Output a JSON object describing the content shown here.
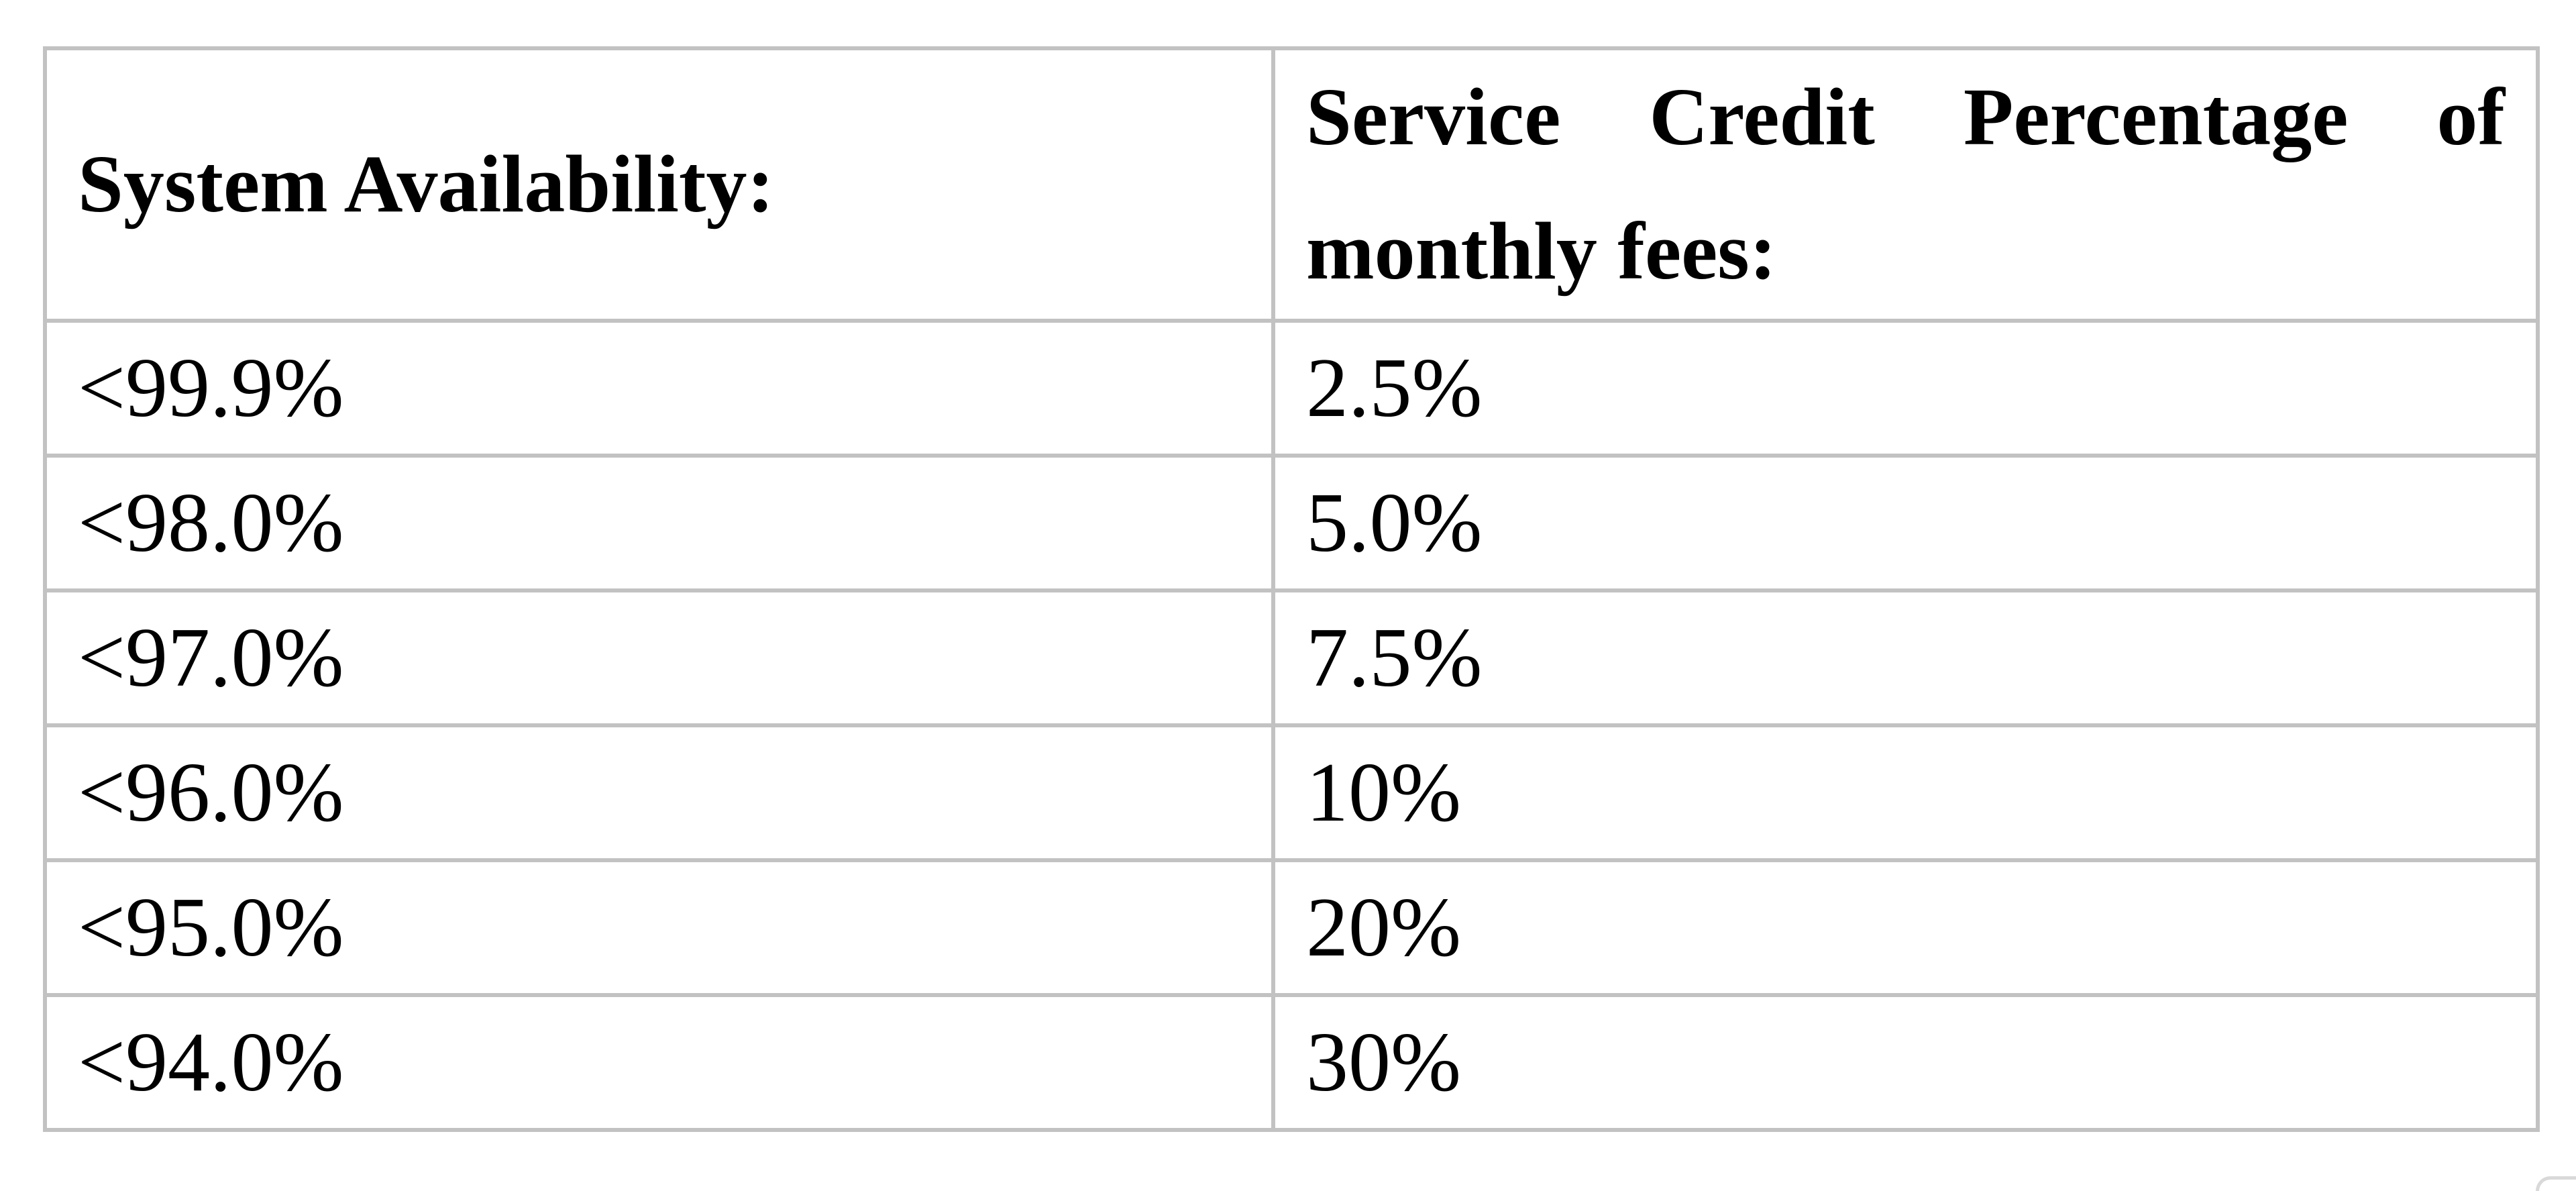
{
  "table": {
    "headers": {
      "availability": "System Availability:",
      "credit": "Service Credit Percentage of monthly fees:"
    },
    "rows": [
      {
        "availability": "<99.9%",
        "credit": "2.5%"
      },
      {
        "availability": "<98.0%",
        "credit": "5.0%"
      },
      {
        "availability": "<97.0%",
        "credit": "7.5%"
      },
      {
        "availability": "<96.0%",
        "credit": "10%"
      },
      {
        "availability": "<95.0%",
        "credit": "20%"
      },
      {
        "availability": "<94.0%",
        "credit": "30%"
      }
    ]
  },
  "colors": {
    "border": "#c2c2c2",
    "text": "#000000",
    "background": "#ffffff"
  }
}
